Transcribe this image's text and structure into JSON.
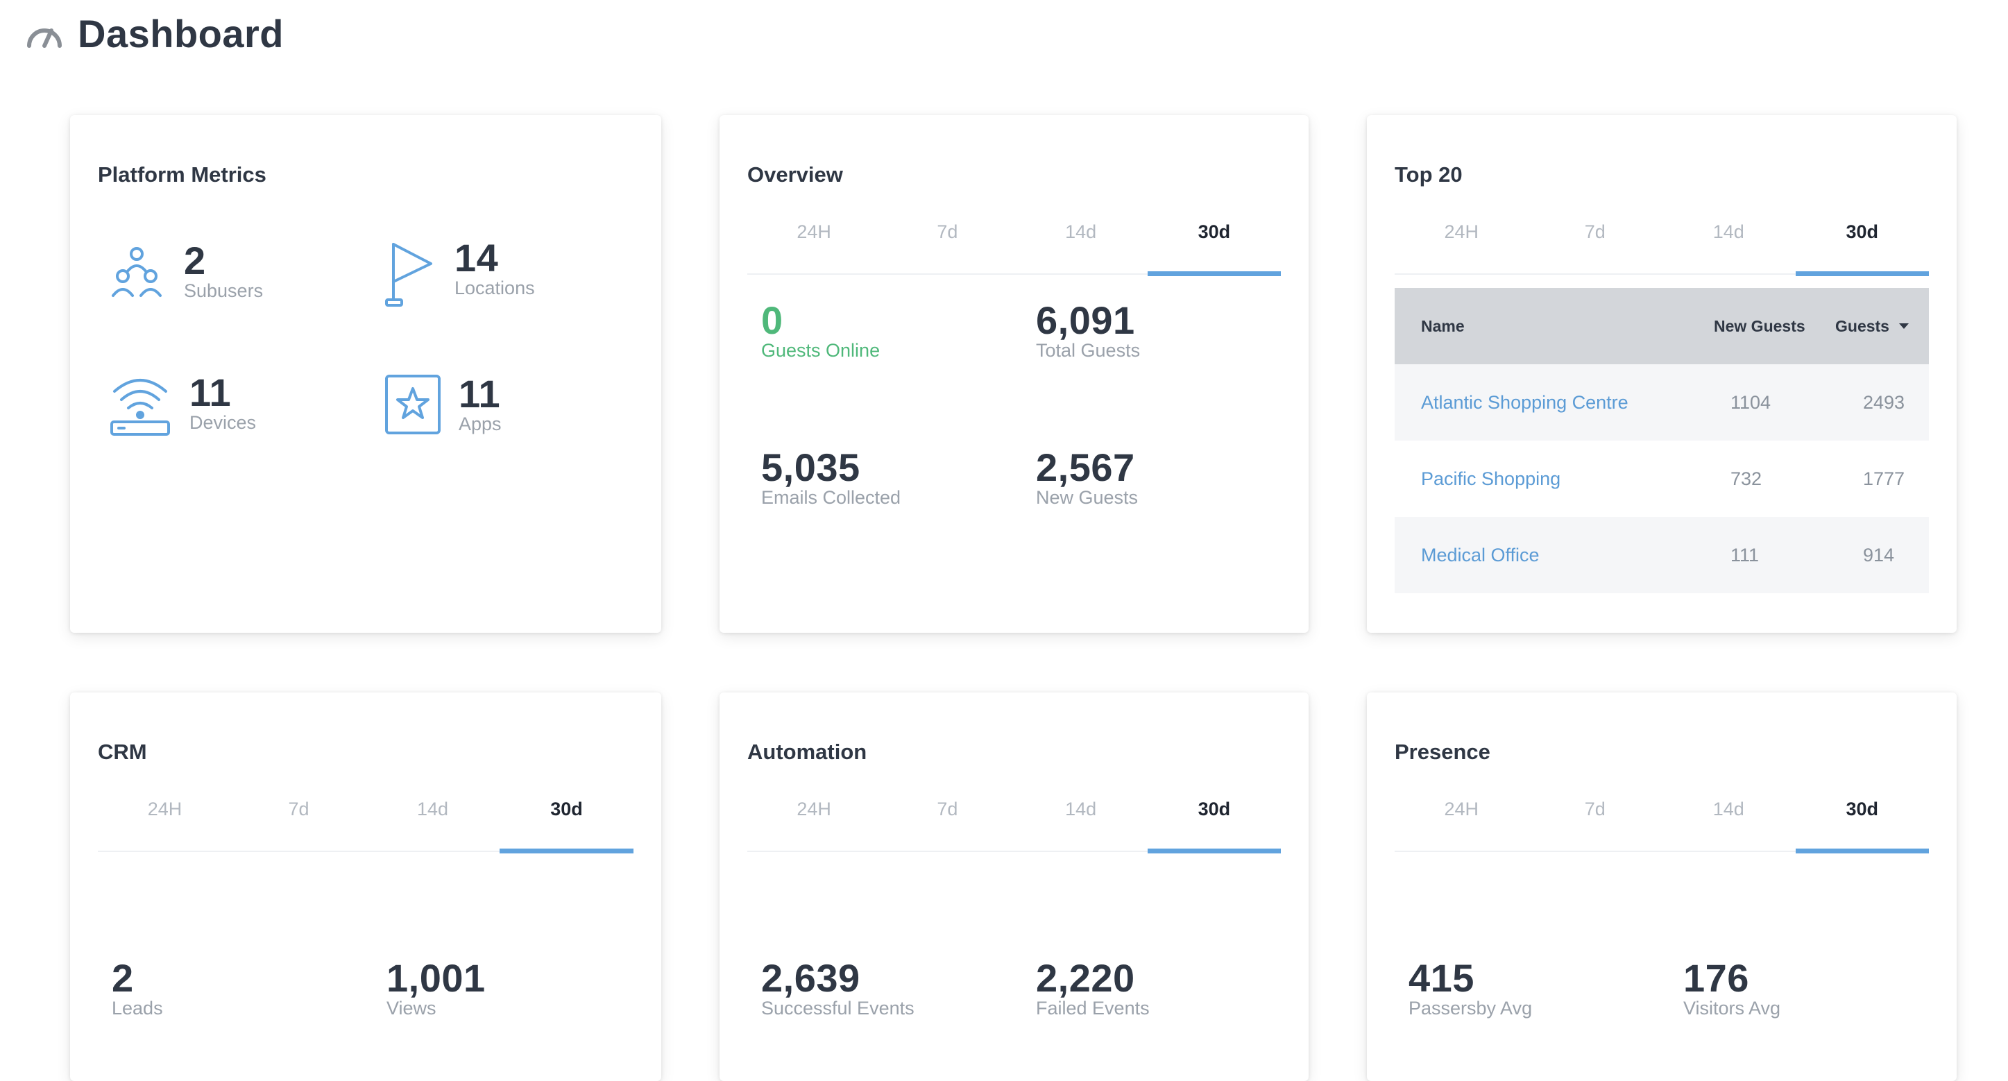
{
  "header": {
    "title": "Dashboard",
    "icon": "speedometer-icon"
  },
  "colors": {
    "accent": "#61a3de",
    "link": "#5b9bd5",
    "positive": "#4fb87a",
    "text": "#2f3744",
    "muted": "#9aa1aa"
  },
  "platform_metrics": {
    "title": "Platform Metrics",
    "items": [
      {
        "value": "2",
        "label": "Subusers",
        "icon": "users-icon"
      },
      {
        "value": "14",
        "label": "Locations",
        "icon": "flag-icon"
      },
      {
        "value": "11",
        "label": "Devices",
        "icon": "router-wifi-icon"
      },
      {
        "value": "11",
        "label": "Apps",
        "icon": "star-app-icon"
      }
    ]
  },
  "periods": [
    "24H",
    "7d",
    "14d",
    "30d"
  ],
  "selected_period": "30d",
  "overview": {
    "title": "Overview",
    "stats": [
      {
        "value": "0",
        "label": "Guests Online"
      },
      {
        "value": "6,091",
        "label": "Total Guests"
      },
      {
        "value": "5,035",
        "label": "Emails Collected"
      },
      {
        "value": "2,567",
        "label": "New Guests"
      }
    ]
  },
  "top20": {
    "title": "Top 20",
    "columns": {
      "name": "Name",
      "new_guests": "New Guests",
      "guests": "Guests"
    },
    "rows": [
      {
        "name": "Atlantic Shopping Centre",
        "new_guests": "1104",
        "guests": "2493"
      },
      {
        "name": "Pacific Shopping",
        "new_guests": "732",
        "guests": "1777"
      },
      {
        "name": "Medical Office",
        "new_guests": "111",
        "guests": "914"
      }
    ]
  },
  "crm": {
    "title": "CRM",
    "stats": [
      {
        "value": "2",
        "label": "Leads"
      },
      {
        "value": "1,001",
        "label": "Views"
      }
    ]
  },
  "automation": {
    "title": "Automation",
    "stats": [
      {
        "value": "2,639",
        "label": "Successful Events"
      },
      {
        "value": "2,220",
        "label": "Failed Events"
      }
    ]
  },
  "presence": {
    "title": "Presence",
    "stats": [
      {
        "value": "415",
        "label": "Passersby Avg"
      },
      {
        "value": "176",
        "label": "Visitors Avg"
      }
    ]
  }
}
